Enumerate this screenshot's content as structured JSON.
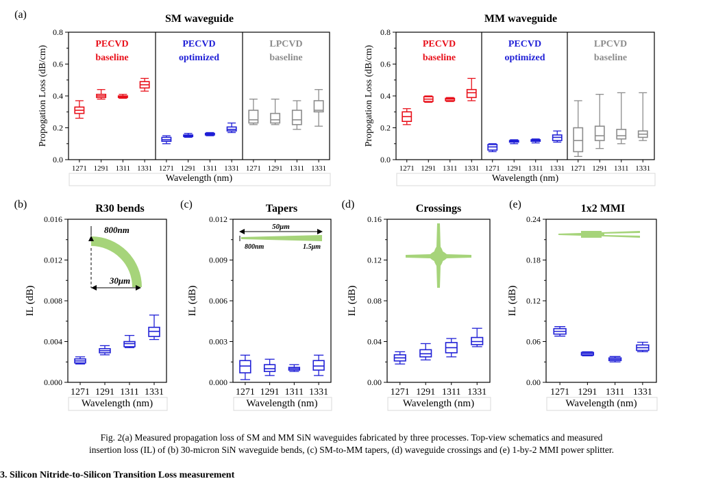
{
  "figure": {
    "caption_lines": [
      "Fig. 2(a) Measured propagation loss of SM and MM SiN waveguides fabricated by three processes. Top-view schematics and measured",
      "insertion loss (IL) of (b) 30-micron SiN waveguide bends, (c) SM-to-MM tapers, (d) waveguide crossings and (e) 1-by-2 MMI power splitter."
    ],
    "next_heading": "3. Silicon Nitride-to-Silicon Transition Loss measurement"
  },
  "colors": {
    "pecvd_baseline": "#e8101a",
    "pecvd_optimized": "#1f1fd6",
    "lpcvd_baseline": "#8c8c8c",
    "schematic": "#a6d47a"
  },
  "chart_data": [
    {
      "type": "boxplot",
      "panel": "(a)",
      "title": "SM waveguide",
      "ylabel": "Propogation Loss (dB/cm)",
      "xlabel": "Wavelength (nm)",
      "ylim": [
        0,
        0.8
      ],
      "yticks": [
        "0.0",
        "0.2",
        "0.4",
        "0.6",
        "0.8"
      ],
      "categories": [
        "1271",
        "1291",
        "1311",
        "1331"
      ],
      "groups": [
        {
          "name": "PECVD",
          "name2": "baseline",
          "color": "#e8101a",
          "boxes": [
            {
              "min": 0.26,
              "q1": 0.29,
              "med": 0.31,
              "q3": 0.33,
              "max": 0.37
            },
            {
              "min": 0.38,
              "q1": 0.39,
              "med": 0.4,
              "q3": 0.41,
              "max": 0.44
            },
            {
              "min": 0.385,
              "q1": 0.39,
              "med": 0.395,
              "q3": 0.4,
              "max": 0.41
            },
            {
              "min": 0.43,
              "q1": 0.45,
              "med": 0.47,
              "q3": 0.49,
              "max": 0.51
            }
          ]
        },
        {
          "name": "PECVD",
          "name2": "optimized",
          "color": "#1f1fd6",
          "boxes": [
            {
              "min": 0.1,
              "q1": 0.115,
              "med": 0.125,
              "q3": 0.14,
              "max": 0.15
            },
            {
              "min": 0.14,
              "q1": 0.145,
              "med": 0.15,
              "q3": 0.155,
              "max": 0.165
            },
            {
              "min": 0.15,
              "q1": 0.155,
              "med": 0.16,
              "q3": 0.165,
              "max": 0.17
            },
            {
              "min": 0.17,
              "q1": 0.18,
              "med": 0.19,
              "q3": 0.205,
              "max": 0.23
            }
          ]
        },
        {
          "name": "LPCVD",
          "name2": "baseline",
          "color": "#8c8c8c",
          "boxes": [
            {
              "min": 0.22,
              "q1": 0.23,
              "med": 0.25,
              "q3": 0.31,
              "max": 0.38
            },
            {
              "min": 0.22,
              "q1": 0.23,
              "med": 0.25,
              "q3": 0.29,
              "max": 0.38
            },
            {
              "min": 0.19,
              "q1": 0.22,
              "med": 0.25,
              "q3": 0.31,
              "max": 0.37
            },
            {
              "min": 0.21,
              "q1": 0.3,
              "med": 0.31,
              "q3": 0.37,
              "max": 0.44
            }
          ]
        }
      ]
    },
    {
      "type": "boxplot",
      "panel": "",
      "title": "MM waveguide",
      "ylabel": "Propogation Loss (dB/cm)",
      "xlabel": "Wavelength (nm)",
      "ylim": [
        0,
        0.8
      ],
      "yticks": [
        "0.0",
        "0.2",
        "0.4",
        "0.6",
        "0.8"
      ],
      "categories": [
        "1271",
        "1291",
        "1311",
        "1331"
      ],
      "groups": [
        {
          "name": "PECVD",
          "name2": "baseline",
          "color": "#e8101a",
          "boxes": [
            {
              "min": 0.22,
              "q1": 0.24,
              "med": 0.27,
              "q3": 0.3,
              "max": 0.32
            },
            {
              "min": 0.36,
              "q1": 0.365,
              "med": 0.38,
              "q3": 0.395,
              "max": 0.4
            },
            {
              "min": 0.365,
              "q1": 0.37,
              "med": 0.38,
              "q3": 0.385,
              "max": 0.39
            },
            {
              "min": 0.37,
              "q1": 0.39,
              "med": 0.42,
              "q3": 0.44,
              "max": 0.51
            }
          ]
        },
        {
          "name": "PECVD",
          "name2": "optimized",
          "color": "#1f1fd6",
          "boxes": [
            {
              "min": 0.05,
              "q1": 0.06,
              "med": 0.08,
              "q3": 0.095,
              "max": 0.1
            },
            {
              "min": 0.1,
              "q1": 0.11,
              "med": 0.115,
              "q3": 0.12,
              "max": 0.125
            },
            {
              "min": 0.105,
              "q1": 0.115,
              "med": 0.12,
              "q3": 0.125,
              "max": 0.13
            },
            {
              "min": 0.11,
              "q1": 0.12,
              "med": 0.14,
              "q3": 0.155,
              "max": 0.18
            }
          ]
        },
        {
          "name": "LPCVD",
          "name2": "baseline",
          "color": "#8c8c8c",
          "boxes": [
            {
              "min": 0.02,
              "q1": 0.05,
              "med": 0.12,
              "q3": 0.2,
              "max": 0.37
            },
            {
              "min": 0.07,
              "q1": 0.12,
              "med": 0.15,
              "q3": 0.21,
              "max": 0.41
            },
            {
              "min": 0.1,
              "q1": 0.13,
              "med": 0.15,
              "q3": 0.19,
              "max": 0.42
            },
            {
              "min": 0.12,
              "q1": 0.14,
              "med": 0.16,
              "q3": 0.18,
              "max": 0.42
            }
          ]
        }
      ]
    },
    {
      "type": "boxplot",
      "panel": "(b)",
      "title": "R30 bends",
      "ylabel": "IL (dB)",
      "xlabel": "Wavelength (nm)",
      "ylim": [
        0,
        0.016
      ],
      "yticks": [
        "0.000",
        "0.004",
        "0.008",
        "0.012",
        "0.016"
      ],
      "categories": [
        "1271",
        "1291",
        "1311",
        "1331"
      ],
      "color": "#1f1fd6",
      "boxes": [
        {
          "min": 0.0018,
          "q1": 0.0019,
          "med": 0.0021,
          "q3": 0.0023,
          "max": 0.0025
        },
        {
          "min": 0.0027,
          "q1": 0.0029,
          "med": 0.0031,
          "q3": 0.0033,
          "max": 0.0036
        },
        {
          "min": 0.0034,
          "q1": 0.0035,
          "med": 0.0038,
          "q3": 0.004,
          "max": 0.0046
        },
        {
          "min": 0.0042,
          "q1": 0.0045,
          "med": 0.005,
          "q3": 0.0054,
          "max": 0.0066
        }
      ],
      "annotations": [
        "800nm",
        "30μm"
      ]
    },
    {
      "type": "boxplot",
      "panel": "(c)",
      "title": "Tapers",
      "ylabel": "IL (dB)",
      "xlabel": "Wavelength (nm)",
      "ylim": [
        0,
        0.012
      ],
      "yticks": [
        "0.000",
        "0.003",
        "0.006",
        "0.009",
        "0.012"
      ],
      "categories": [
        "1271",
        "1291",
        "1311",
        "1331"
      ],
      "color": "#1f1fd6",
      "boxes": [
        {
          "min": 0.0002,
          "q1": 0.0007,
          "med": 0.0012,
          "q3": 0.0016,
          "max": 0.002
        },
        {
          "min": 0.0005,
          "q1": 0.0008,
          "med": 0.001,
          "q3": 0.0013,
          "max": 0.0017
        },
        {
          "min": 0.0008,
          "q1": 0.0009,
          "med": 0.001,
          "q3": 0.0011,
          "max": 0.0013
        },
        {
          "min": 0.0005,
          "q1": 0.0009,
          "med": 0.0012,
          "q3": 0.0016,
          "max": 0.002
        }
      ],
      "annotations": [
        "50μm",
        "800nm",
        "1.5μm"
      ]
    },
    {
      "type": "boxplot",
      "panel": "(d)",
      "title": "Crossings",
      "ylabel": "IL (dB)",
      "xlabel": "Wavelength (nm)",
      "ylim": [
        0,
        0.16
      ],
      "yticks": [
        "0.00",
        "0.04",
        "0.08",
        "0.12",
        "0.16"
      ],
      "categories": [
        "1271",
        "1291",
        "1311",
        "1331"
      ],
      "color": "#1f1fd6",
      "boxes": [
        {
          "min": 0.018,
          "q1": 0.021,
          "med": 0.024,
          "q3": 0.027,
          "max": 0.03
        },
        {
          "min": 0.022,
          "q1": 0.025,
          "med": 0.028,
          "q3": 0.032,
          "max": 0.038
        },
        {
          "min": 0.025,
          "q1": 0.029,
          "med": 0.034,
          "q3": 0.039,
          "max": 0.043
        },
        {
          "min": 0.035,
          "q1": 0.037,
          "med": 0.04,
          "q3": 0.044,
          "max": 0.053
        }
      ]
    },
    {
      "type": "boxplot",
      "panel": "(e)",
      "title": "1x2 MMI",
      "ylabel": "IL (dB)",
      "xlabel": "Wavelength (nm)",
      "ylim": [
        0,
        0.24
      ],
      "yticks": [
        "0.00",
        "0.06",
        "0.12",
        "0.18",
        "0.24"
      ],
      "categories": [
        "1271",
        "1291",
        "1311",
        "1331"
      ],
      "color": "#1f1fd6",
      "boxes": [
        {
          "min": 0.068,
          "q1": 0.071,
          "med": 0.075,
          "q3": 0.079,
          "max": 0.082
        },
        {
          "min": 0.039,
          "q1": 0.04,
          "med": 0.042,
          "q3": 0.044,
          "max": 0.045
        },
        {
          "min": 0.03,
          "q1": 0.032,
          "med": 0.034,
          "q3": 0.036,
          "max": 0.038
        },
        {
          "min": 0.045,
          "q1": 0.047,
          "med": 0.051,
          "q3": 0.055,
          "max": 0.059
        }
      ]
    }
  ]
}
